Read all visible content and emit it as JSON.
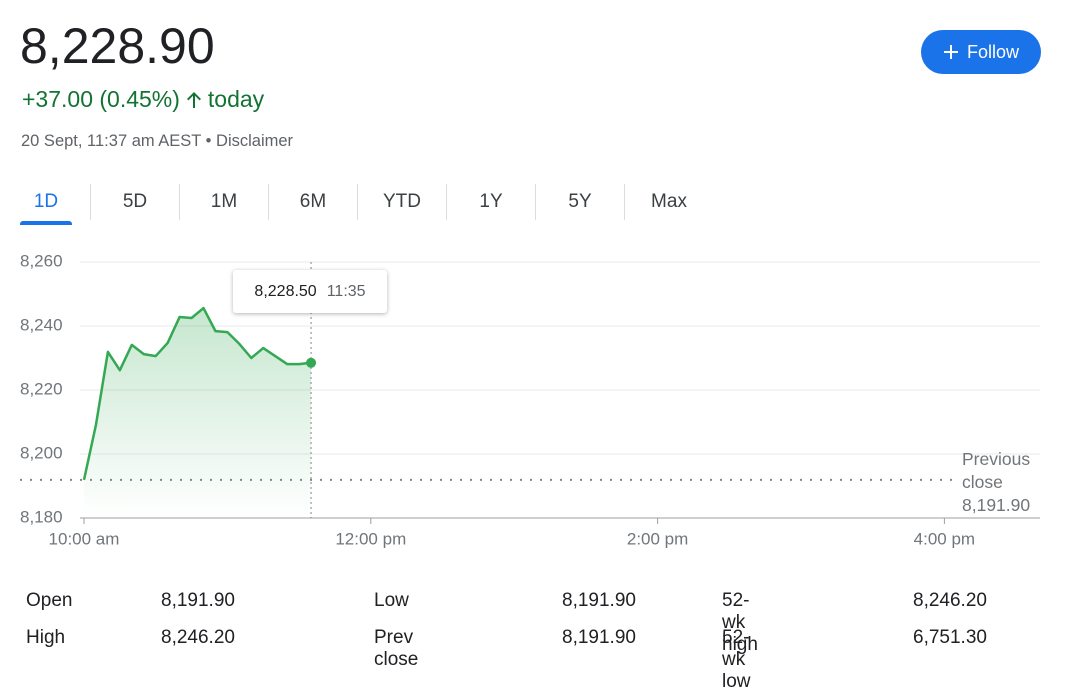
{
  "header": {
    "price": "8,228.90",
    "change": "+37.00 (0.45%)",
    "period": "today",
    "timestamp": "20 Sept, 11:37 am AEST",
    "disclaimer": "Disclaimer",
    "follow": "Follow"
  },
  "tabs": {
    "items": [
      "1D",
      "5D",
      "1M",
      "6M",
      "YTD",
      "1Y",
      "5Y",
      "Max"
    ],
    "active": 0
  },
  "chart_data": {
    "type": "line",
    "x": [
      600,
      605,
      610,
      615,
      620,
      625,
      630,
      635,
      640,
      645,
      650,
      655,
      660,
      665,
      670,
      675,
      680,
      685,
      690,
      695
    ],
    "values": [
      8191.9,
      8209.1,
      8231.9,
      8226.2,
      8234.1,
      8231.2,
      8230.6,
      8234.7,
      8242.8,
      8242.5,
      8245.6,
      8238.4,
      8238.1,
      8234.4,
      8230.0,
      8233.1,
      8230.6,
      8228.1,
      8228.1,
      8228.5
    ],
    "color": "#34a853",
    "xlim": [
      600,
      1000
    ],
    "xticks": [
      {
        "value": 600,
        "label": "10:00 am"
      },
      {
        "value": 720,
        "label": "12:00 pm"
      },
      {
        "value": 840,
        "label": "2:00 pm"
      },
      {
        "value": 960,
        "label": "4:00 pm"
      }
    ],
    "ylim": [
      8180,
      8260
    ],
    "yticks": [
      {
        "value": 8180,
        "label": "8,180"
      },
      {
        "value": 8200,
        "label": "8,200"
      },
      {
        "value": 8220,
        "label": "8,220"
      },
      {
        "value": 8240,
        "label": "8,240"
      },
      {
        "value": 8260,
        "label": "8,260"
      }
    ],
    "grid": true,
    "previous_close": {
      "value": 8191.9,
      "label": "8,191.90",
      "text": "Previous close"
    },
    "tooltip": {
      "label": "8,228.50",
      "time": "11:35"
    }
  },
  "stats": {
    "rows": [
      [
        "Open",
        "8,191.90",
        "Low",
        "8,191.90",
        "52-wk high",
        "8,246.20"
      ],
      [
        "High",
        "8,246.20",
        "Prev close",
        "8,191.90",
        "52-wk low",
        "6,751.30"
      ]
    ]
  }
}
